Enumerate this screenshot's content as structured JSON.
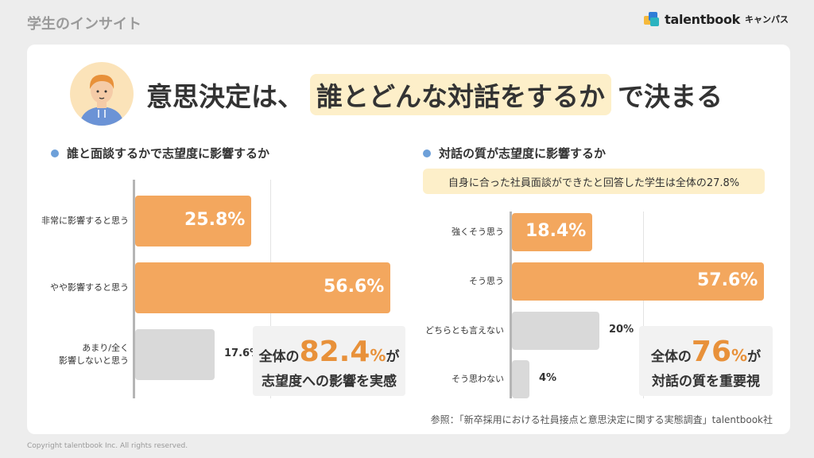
{
  "section_label": "学生のインサイト",
  "brand": {
    "name": "talentbook",
    "sub": "キャンパス"
  },
  "headline": {
    "pre": "意思決定は、",
    "highlight": "誰とどんな対話をするか",
    "post": "で決まる"
  },
  "colors": {
    "accent": "#f3a75e",
    "neutral": "#d9d9d9",
    "highlight_bg": "#fdefc9",
    "dot": "#6da0d9",
    "callout_number": "#e8913a"
  },
  "chart_data": [
    {
      "type": "bar",
      "orientation": "horizontal",
      "title": "誰と面談するかで志望度に影響するか",
      "categories": [
        "非常に影響すると思う",
        "やや影響すると思う",
        "あまり/全く 影響しないと思う"
      ],
      "values": [
        25.8,
        56.6,
        17.6
      ],
      "labels": [
        "25.8%",
        "56.6%",
        "17.6%"
      ],
      "xlim": [
        0,
        60
      ],
      "highlighted": [
        true,
        true,
        false
      ],
      "callout": {
        "prefix": "全体の",
        "number": "82.4",
        "unit": "%",
        "suffix": "が",
        "line2": "志望度への影響を実感"
      }
    },
    {
      "type": "bar",
      "orientation": "horizontal",
      "title": "対話の質が志望度に影響するか",
      "note": "自身に合った社員面談ができたと回答した学生は全体の27.8%",
      "categories": [
        "強くそう思う",
        "そう思う",
        "どちらとも言えない",
        "そう思わない"
      ],
      "values": [
        18.4,
        57.6,
        20,
        4
      ],
      "labels": [
        "18.4%",
        "57.6%",
        "20%",
        "4%"
      ],
      "xlim": [
        0,
        60
      ],
      "highlighted": [
        true,
        true,
        false,
        false
      ],
      "callout": {
        "prefix": "全体の",
        "number": "76",
        "unit": "%",
        "suffix": "が",
        "line2": "対話の質を重要視"
      }
    }
  ],
  "source": "参照：「新卒採用における社員接点と意思決定に関する実態調査」talentbook社",
  "copyright": "Copyright talentbook Inc. All rights reserved."
}
